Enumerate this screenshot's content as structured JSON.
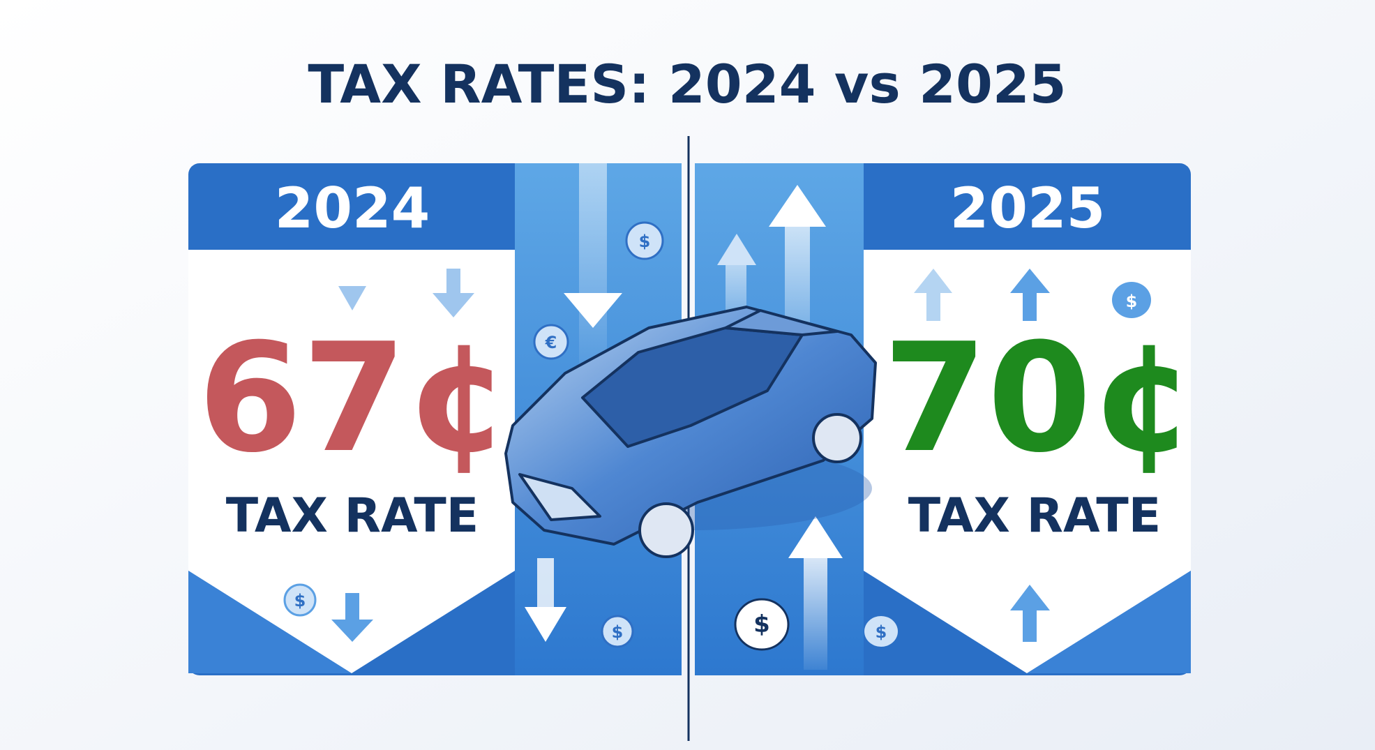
{
  "title": "TAX RATES: 2024 vs 2025",
  "panels": [
    {
      "year": "2024",
      "rate": "67¢",
      "label": "TAX RATE"
    },
    {
      "year": "2025",
      "rate": "70¢",
      "label": "TAX RATE"
    }
  ],
  "symbols": {
    "dollar": "$",
    "euro": "€"
  }
}
